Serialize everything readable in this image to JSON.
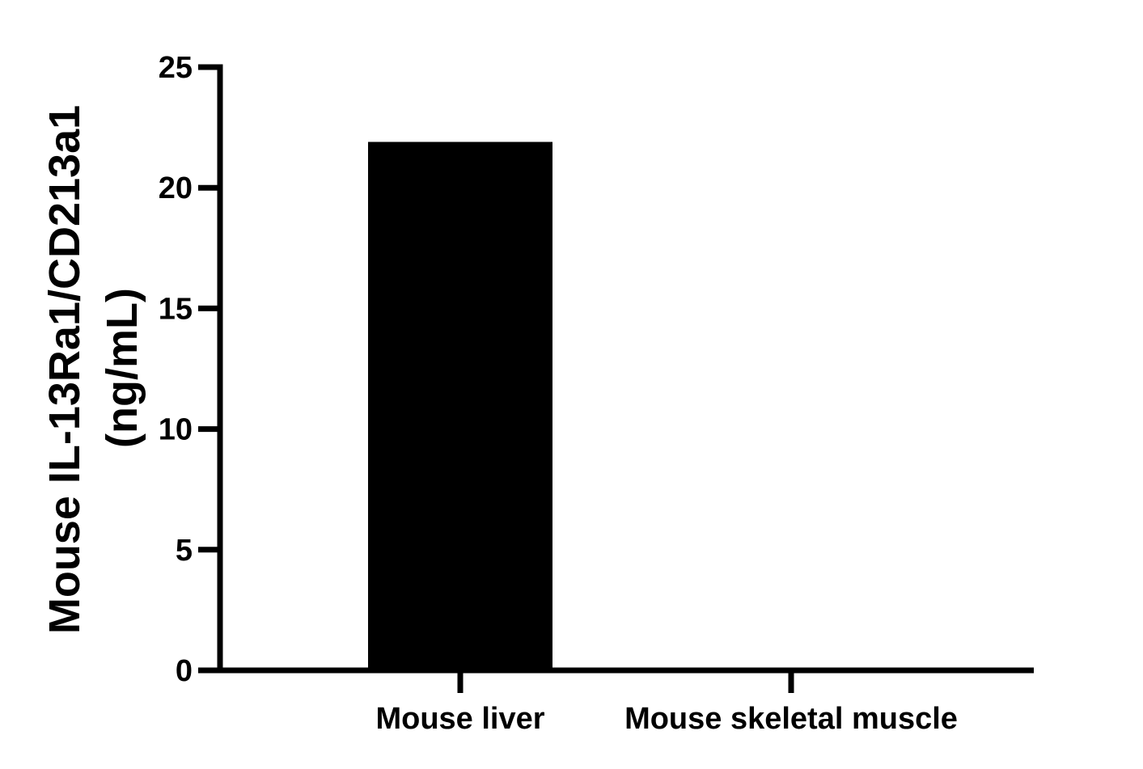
{
  "chart_data": {
    "type": "bar",
    "categories": [
      "Mouse liver",
      "Mouse skeletal muscle"
    ],
    "values": [
      21.9,
      0
    ],
    "xlabel": "",
    "ylabel_lines": [
      "Mouse IL-13Ra1/CD213a1",
      "(ng/mL)"
    ],
    "ylim": [
      0,
      25
    ],
    "yticks": [
      "0",
      "5",
      "10",
      "15",
      "20",
      "25"
    ],
    "bar_color": "#000000",
    "grid": false,
    "legend": "none"
  }
}
